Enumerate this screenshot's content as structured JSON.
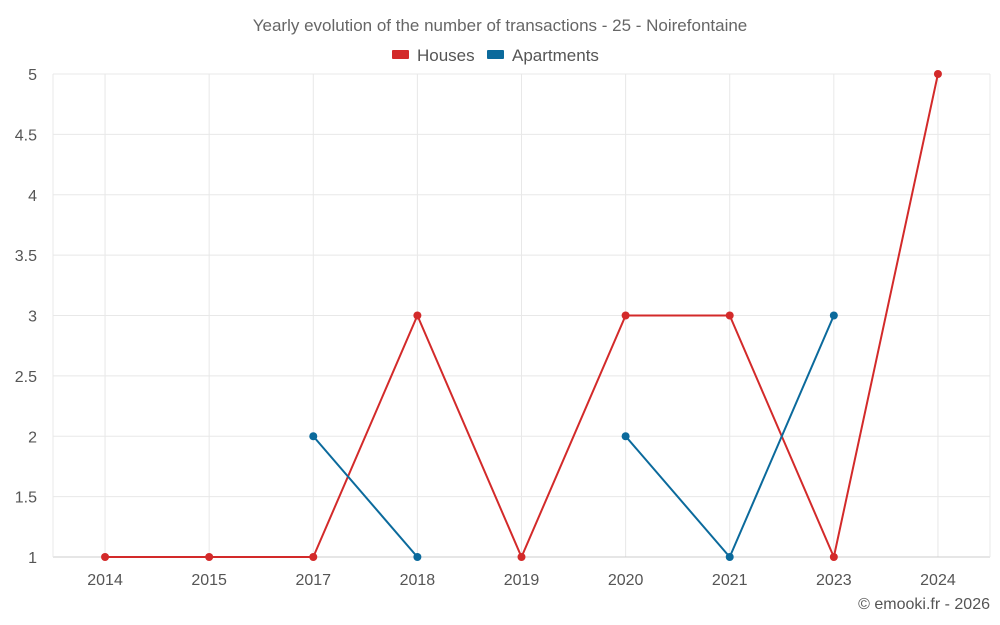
{
  "chart_data": {
    "type": "line",
    "title": "Yearly evolution of the number of transactions - 25 - Noirefontaine",
    "categories": [
      "2014",
      "2015",
      "2017",
      "2018",
      "2019",
      "2020",
      "2021",
      "2023",
      "2024"
    ],
    "series": [
      {
        "name": "Houses",
        "color": "#d32a2a",
        "values": [
          1,
          1,
          1,
          3,
          1,
          3,
          3,
          1,
          5
        ]
      },
      {
        "name": "Apartments",
        "color": "#0b6a9c",
        "values": [
          null,
          null,
          2,
          1,
          null,
          2,
          1,
          3,
          null
        ]
      }
    ],
    "y_ticks": [
      "1",
      "1.5",
      "2",
      "2.5",
      "3",
      "3.5",
      "4",
      "4.5",
      "5"
    ],
    "ylim": [
      1,
      5
    ],
    "grid": true,
    "legend_position": "top-center",
    "xlabel": "",
    "ylabel": ""
  },
  "credit": "© emooki.fr - 2026"
}
